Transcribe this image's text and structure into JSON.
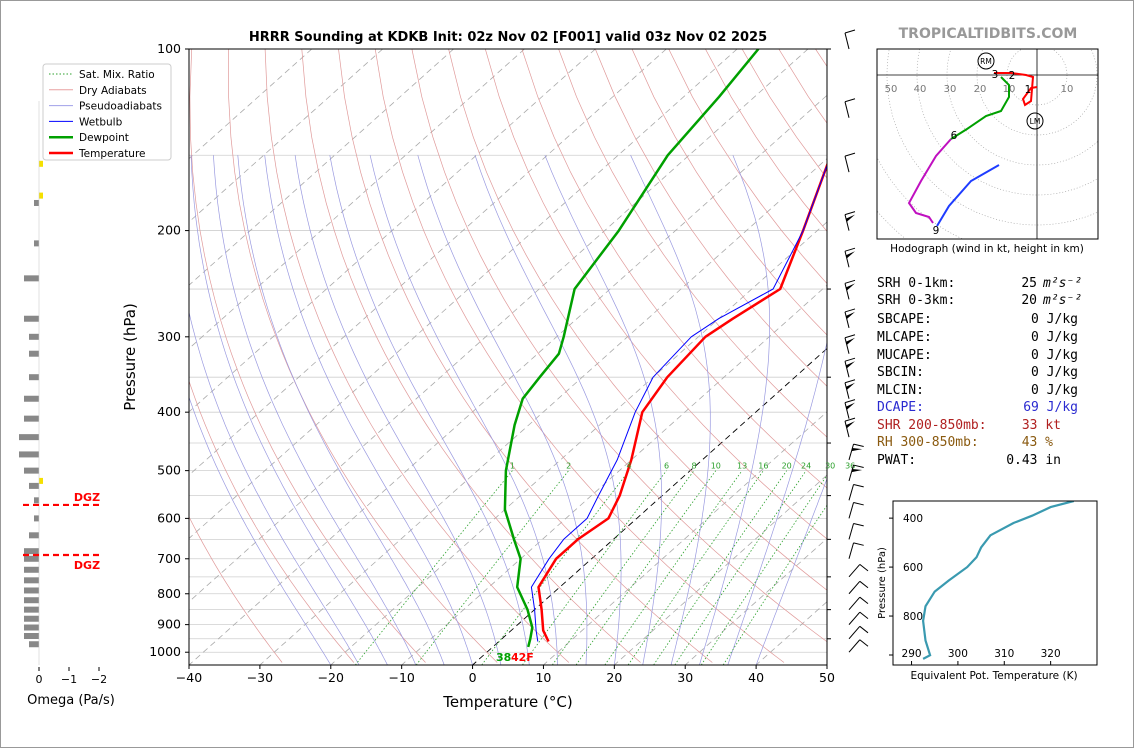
{
  "brand": "TROPICALTIDBITS.COM",
  "chart_data": [
    {
      "type": "line",
      "title": "HRRR Sounding at KDKB Init: 02z Nov 02 [F001] valid 03z Nov 02 2025",
      "xlabel": "Temperature (°C)",
      "ylabel": "Pressure (hPa)",
      "xlim": [
        -40,
        50
      ],
      "ylim": [
        1050,
        100
      ],
      "x_ticks": [
        "−40",
        "−30",
        "−20",
        "−10",
        "0",
        "10",
        "20",
        "30",
        "40",
        "50"
      ],
      "y_ticks": [
        "100",
        "200",
        "300",
        "400",
        "500",
        "600",
        "700",
        "800",
        "900",
        "1000"
      ],
      "mixing_ratio_labels": [
        "1",
        "2",
        "4",
        "6",
        "8",
        "10",
        "13",
        "16",
        "20",
        "24",
        "30",
        "36"
      ],
      "legend": [
        {
          "label": "Sat. Mix. Ratio",
          "color": "#2ca02c",
          "style": "dotted"
        },
        {
          "label": "Dry Adiabats",
          "color": "#e8a0a0",
          "style": "solid"
        },
        {
          "label": "Pseudoadiabats",
          "color": "#a0a0e8",
          "style": "solid"
        },
        {
          "label": "Wetbulb",
          "color": "#0000ff",
          "style": "solid"
        },
        {
          "label": "Dewpoint",
          "color": "#00a000",
          "style": "solid"
        },
        {
          "label": "Temperature",
          "color": "#ff0000",
          "style": "solid"
        }
      ],
      "series": [
        {
          "name": "Temperature",
          "color": "#ff0000",
          "points": [
            [
              7,
              960
            ],
            [
              4.5,
              920
            ],
            [
              1,
              850
            ],
            [
              -3,
              780
            ],
            [
              -5,
              700
            ],
            [
              -5,
              650
            ],
            [
              -4,
              600
            ],
            [
              -6,
              550
            ],
            [
              -10,
              480
            ],
            [
              -16,
              400
            ],
            [
              -18,
              350
            ],
            [
              -19,
              300
            ],
            [
              -18,
              280
            ],
            [
              -16,
              250
            ],
            [
              -22,
              200
            ],
            [
              -30,
              150
            ],
            [
              -35,
              120
            ],
            [
              -39,
              100
            ]
          ]
        },
        {
          "name": "Dewpoint",
          "color": "#00a000",
          "points": [
            [
              5,
              980
            ],
            [
              4,
              950
            ],
            [
              2.5,
              910
            ],
            [
              -1,
              850
            ],
            [
              -6,
              780
            ],
            [
              -10,
              700
            ],
            [
              -14,
              650
            ],
            [
              -20,
              580
            ],
            [
              -26,
              500
            ],
            [
              -32,
              420
            ],
            [
              -35,
              380
            ],
            [
              -36,
              350
            ],
            [
              -37,
              320
            ],
            [
              -39,
              300
            ],
            [
              -45,
              250
            ],
            [
              -48,
              200
            ],
            [
              -53,
              150
            ],
            [
              -55,
              120
            ],
            [
              -57,
              100
            ]
          ]
        },
        {
          "name": "Wetbulb",
          "color": "#0000ff",
          "points": [
            [
              5.5,
              960
            ],
            [
              3.5,
              920
            ],
            [
              0,
              850
            ],
            [
              -4,
              780
            ],
            [
              -6,
              700
            ],
            [
              -7,
              650
            ],
            [
              -7,
              600
            ],
            [
              -9,
              550
            ],
            [
              -12,
              480
            ],
            [
              -17,
              400
            ],
            [
              -20,
              350
            ],
            [
              -21,
              300
            ],
            [
              -20,
              280
            ],
            [
              -17,
              250
            ],
            [
              -22,
              200
            ],
            [
              -30,
              150
            ],
            [
              -35,
              120
            ],
            [
              -40,
              100
            ]
          ]
        }
      ],
      "surface_dewpoint_label": "38",
      "surface_temp_label": "42F"
    },
    {
      "type": "bar",
      "title": "",
      "xlabel": "Omega (Pa/s)",
      "x_ticks": [
        "0",
        "−1",
        "−2"
      ],
      "dgz_labels": [
        "DGZ",
        "DGZ"
      ],
      "dgz_pressures": [
        570,
        690
      ]
    },
    {
      "type": "line",
      "title": "Hodograph (wind in kt, height in km)",
      "ring_labels": [
        "50",
        "40",
        "30",
        "20",
        "10",
        "10"
      ],
      "height_labels": [
        "1",
        "2",
        "3",
        "6",
        "9"
      ],
      "markers": [
        "RM",
        "LM"
      ]
    },
    {
      "type": "line",
      "title": "",
      "xlabel": "Equivalent Pot. Temperature (K)",
      "ylabel": "Pressure (hPa)",
      "x_ticks": [
        "290",
        "300",
        "310",
        "320"
      ],
      "y_ticks": [
        "400",
        "600",
        "800"
      ],
      "xlim": [
        286,
        330
      ],
      "ylim": [
        1000,
        330
      ],
      "series": [
        {
          "name": "",
          "color": "#3a9ab0",
          "points": [
            [
              292.5,
              975
            ],
            [
              294,
              960
            ],
            [
              293,
              900
            ],
            [
              292.5,
              820
            ],
            [
              293,
              760
            ],
            [
              295,
              700
            ],
            [
              298,
              655
            ],
            [
              302,
              600
            ],
            [
              304,
              560
            ],
            [
              305,
              520
            ],
            [
              307,
              470
            ],
            [
              312,
              420
            ],
            [
              316,
              390
            ],
            [
              320,
              355
            ],
            [
              325,
              330
            ]
          ]
        }
      ]
    }
  ],
  "stats": {
    "srh01_label": "SRH 0-1km:",
    "srh01_val": "25",
    "srh03_label": "SRH 0-3km:",
    "srh03_val": "20",
    "srh_unit": "m²s⁻²",
    "sbcape_label": "SBCAPE:",
    "sbcape_val": "0 J/kg",
    "mlcape_label": "MLCAPE:",
    "mlcape_val": "0 J/kg",
    "mucape_label": "MUCAPE:",
    "mucape_val": "0 J/kg",
    "sbcin_label": "SBCIN:",
    "sbcin_val": "0 J/kg",
    "mlcin_label": "MLCIN:",
    "mlcin_val": "0 J/kg",
    "dcape_label": "DCAPE:",
    "dcape_val": "69 J/kg",
    "shr_label": "SHR 200-850mb:",
    "shr_val": "33 kt",
    "rh_label": "RH 300-850mb:",
    "rh_val": "43 %",
    "pwat_label": "PWAT:",
    "pwat_val": "0.43 in",
    "dcape_color": "#2a2ad0",
    "shr_color": "#b02020",
    "rh_color": "#8a5a10"
  }
}
